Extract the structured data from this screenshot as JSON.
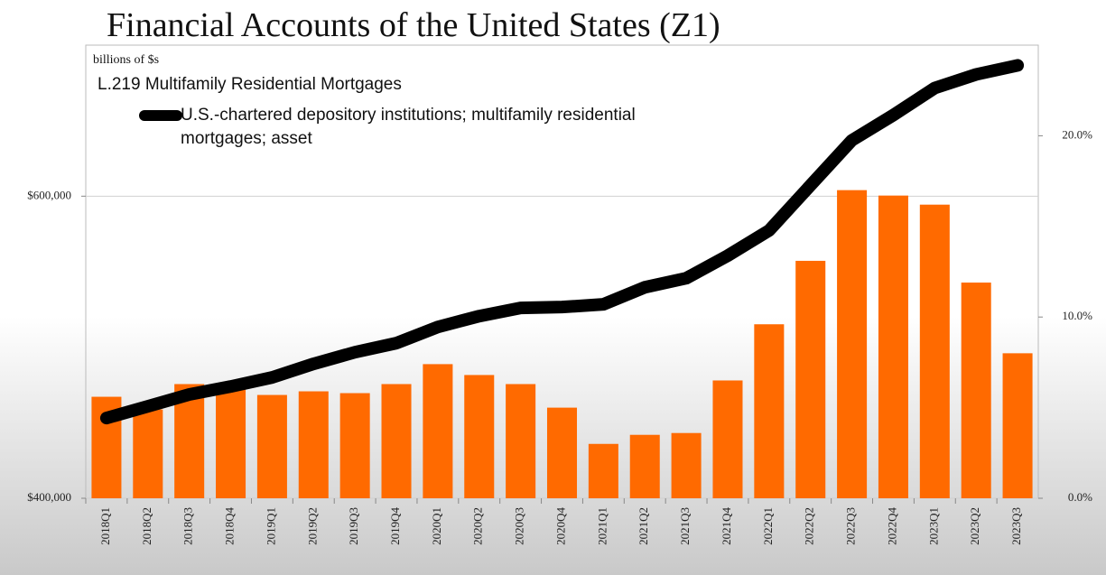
{
  "chart_data": {
    "type": "bar",
    "title": "Financial Accounts of the United States (Z1)",
    "units_label": "billions of $s",
    "subtitle": "L.219 Multifamily Residential Mortgages",
    "categories": [
      "2018Q1",
      "2018Q2",
      "2018Q3",
      "2018Q4",
      "2019Q1",
      "2019Q2",
      "2019Q3",
      "2019Q4",
      "2020Q1",
      "2020Q2",
      "2020Q3",
      "2020Q4",
      "2021Q1",
      "2021Q2",
      "2021Q3",
      "2021Q4",
      "2022Q1",
      "2022Q2",
      "2022Q3",
      "2022Q4",
      "2023Q1",
      "2023Q2",
      "2023Q3"
    ],
    "series": [
      {
        "type": "bar",
        "axis": "y2",
        "color": "#ff6a00",
        "values": [
          5.6,
          4.9,
          6.3,
          6.0,
          5.7,
          5.9,
          5.8,
          6.3,
          7.4,
          6.8,
          6.3,
          5.0,
          3.0,
          3.5,
          3.6,
          6.5,
          9.6,
          13.1,
          17.0,
          16.7,
          16.2,
          11.9,
          8.0
        ]
      },
      {
        "type": "line",
        "name": "U.S.-chartered depository institutions; multifamily residential mortgages; asset",
        "color": "#000000",
        "values": [
          453100,
          460900,
          468700,
          474000,
          480000,
          489000,
          496700,
          502700,
          513400,
          520600,
          526000,
          526600,
          528400,
          539700,
          545700,
          560600,
          577300,
          607200,
          637000,
          653700,
          671600,
          680600,
          686600
        ]
      }
    ],
    "ylim": [
      400000,
      700000
    ],
    "yticks": [
      {
        "value": 400000,
        "label": "$400,000"
      },
      {
        "value": 600000,
        "label": "$600,000"
      }
    ],
    "y2lim": [
      0,
      25
    ],
    "y2ticks": [
      {
        "value": 0,
        "label": "0.0%"
      },
      {
        "value": 10,
        "label": "10.0%"
      },
      {
        "value": 20,
        "label": "20.0%"
      }
    ],
    "grid": true
  }
}
